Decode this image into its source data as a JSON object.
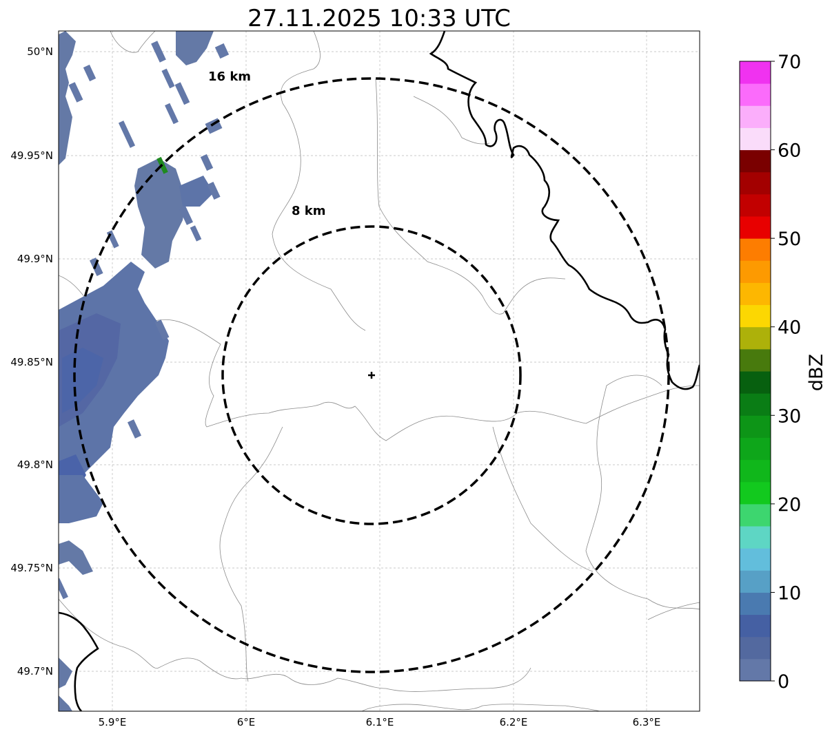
{
  "title": "27.11.2025 10:33 UTC",
  "map": {
    "x_ticks": [
      "5.9°E",
      "6°E",
      "6.1°E",
      "6.2°E",
      "6.3°E"
    ],
    "y_ticks": [
      "50°N",
      "49.95°N",
      "49.9°N",
      "49.85°N",
      "49.8°N",
      "49.75°N",
      "49.7°N"
    ],
    "rings": [
      {
        "label": "8 km",
        "radius_km": 8
      },
      {
        "label": "16 km",
        "radius_km": 16
      }
    ],
    "radar_marker": "center-cross",
    "gridlines": true
  },
  "colorbar": {
    "label": "dBZ",
    "ticks": [
      "0",
      "10",
      "20",
      "30",
      "40",
      "50",
      "60",
      "70"
    ],
    "colors": [
      "#6378a8",
      "#53699f",
      "#4560a3",
      "#4a7ab0",
      "#57a0c6",
      "#62bedc",
      "#5ed6c4",
      "#3dd66f",
      "#12c91e",
      "#10b71b",
      "#0ea61a",
      "#0d9517",
      "#0a7d15",
      "#07600f",
      "#487a0d",
      "#adb10a",
      "#fcd702",
      "#fdb701",
      "#fd9a01",
      "#fd7d01",
      "#e80000",
      "#c20000",
      "#a30000",
      "#7a0000",
      "#fadcfa",
      "#fbaefb",
      "#fb6bfb",
      "#f032f0"
    ]
  }
}
